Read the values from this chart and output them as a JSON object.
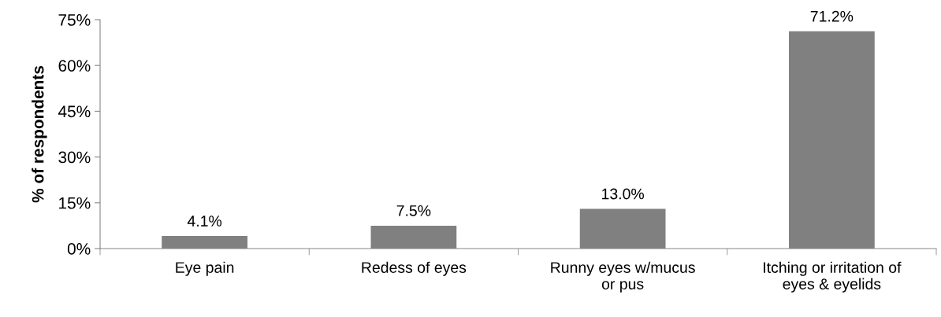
{
  "chart_data": {
    "type": "bar",
    "ylabel": "% of respondents",
    "categories": [
      "Eye pain",
      "Redess of eyes",
      "Runny eyes w/mucus\nor pus",
      "Itching or irritation of\neyes & eyelids"
    ],
    "values": [
      4.1,
      7.5,
      13.0,
      71.2
    ],
    "value_labels": [
      "4.1%",
      "7.5%",
      "13.0%",
      "71.2%"
    ],
    "color": "#808080",
    "ylim": [
      0,
      75
    ],
    "yticks": [
      {
        "value": 0,
        "label": "0%"
      },
      {
        "value": 15,
        "label": "15%"
      },
      {
        "value": 30,
        "label": "30%"
      },
      {
        "value": 45,
        "label": "45%"
      },
      {
        "value": 60,
        "label": "60%"
      },
      {
        "value": 75,
        "label": "75%"
      }
    ],
    "grid": false
  }
}
